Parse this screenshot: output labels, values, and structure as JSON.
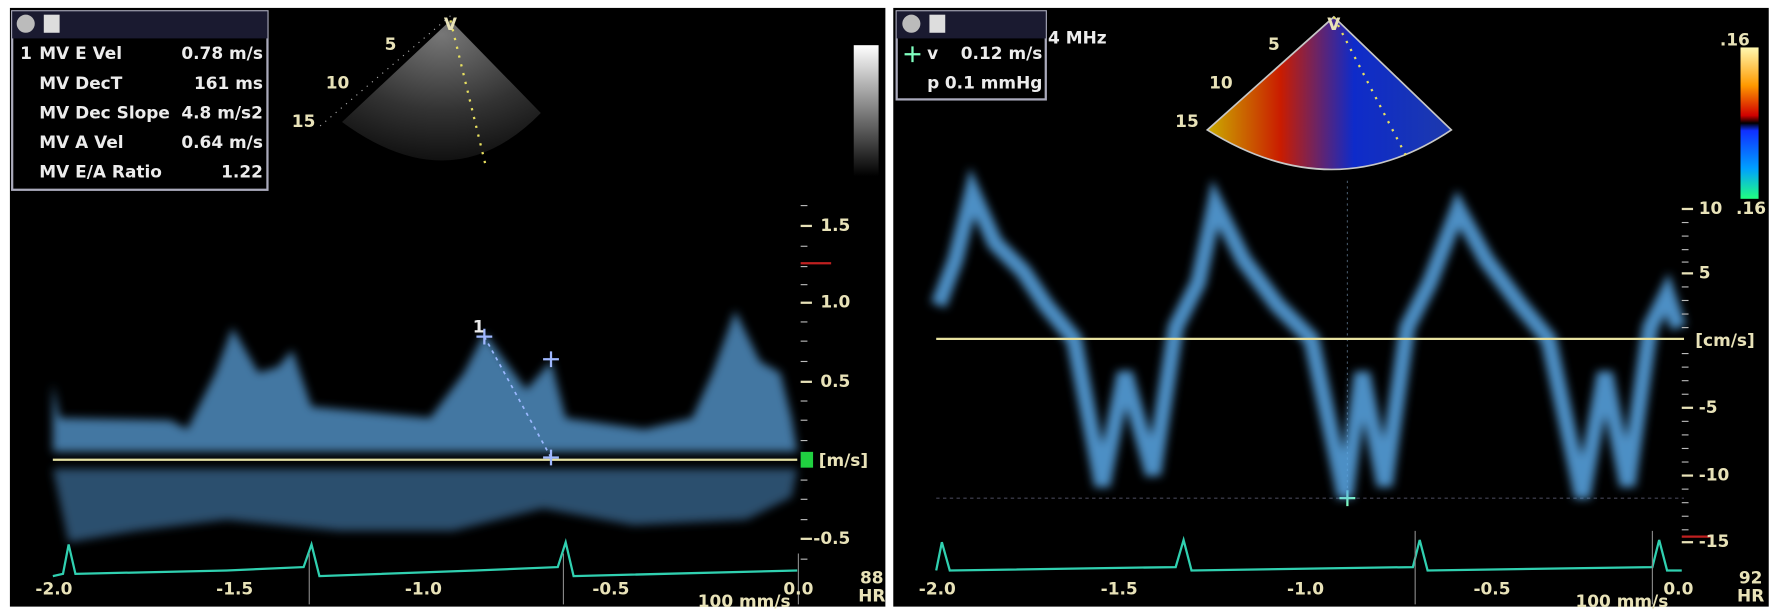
{
  "left_panel": {
    "measurements": {
      "index": "1",
      "rows": [
        [
          "MV E Vel",
          "0.78 m/s"
        ],
        [
          "MV DecT",
          "161 ms"
        ],
        [
          "MV Dec Slope",
          "4.8 m/s2"
        ],
        [
          "MV A Vel",
          "0.64 m/s"
        ],
        [
          "MV E/A Ratio",
          "1.22"
        ]
      ]
    },
    "sector_labels": [
      "V",
      "5",
      "10",
      "15"
    ],
    "caliper_label": "1",
    "y_tick_labels": [
      "1.5",
      "1.0",
      "0.5",
      "-0.5"
    ],
    "unit": "[m/s]",
    "x_tick_labels": [
      "-2.0",
      "-1.5",
      "-1.0",
      "-0.5",
      "0.0"
    ],
    "heart_rate": "88",
    "hr_label": "HR",
    "sweep_speed": "100 mm/s"
  },
  "right_panel": {
    "measurements": {
      "rows": [
        [
          "v",
          "0.12 m/s"
        ],
        [
          "p",
          "0.1 mmHg"
        ]
      ]
    },
    "frequency": "4 MHz",
    "sector_labels": [
      "V",
      "5",
      "10",
      "15"
    ],
    "color_scale_top": ".16",
    "color_scale_bottom": ".16",
    "y_tick_labels": [
      "10",
      "5",
      "-5",
      "-10",
      "-15"
    ],
    "unit": "[cm/s]",
    "x_tick_labels": [
      "-2.0",
      "-1.5",
      "-1.0",
      "-0.5",
      "0.0"
    ],
    "heart_rate": "92",
    "hr_label": "HR",
    "sweep_speed": "100 mm/s"
  }
}
